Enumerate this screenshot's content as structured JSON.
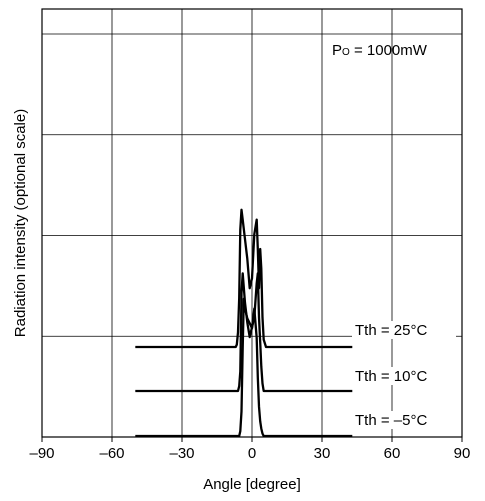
{
  "chart_data": {
    "type": "line",
    "xlabel": "Angle [degree]",
    "ylabel": "Radiation intensity (optional scale)",
    "xlim": [
      -90,
      90
    ],
    "x_ticks": [
      -90,
      -60,
      -30,
      0,
      30,
      60,
      90
    ],
    "x_tick_labels": [
      "–90",
      "–60",
      "–30",
      "0",
      "30",
      "60",
      "90"
    ],
    "grid": true,
    "condition_label": "Po = 1000mW",
    "condition_label_main": "P",
    "condition_label_sub": "O",
    "condition_label_rest": " = 1000mW",
    "series": [
      {
        "name": "Tth = 25°C",
        "x": [
          -50,
          -7,
          -6.5,
          -6,
          -5.5,
          -5,
          -4.5,
          -4,
          -3,
          -2,
          -1,
          0,
          1,
          2,
          2.5,
          3,
          3.5,
          4,
          4.5,
          5,
          6,
          43
        ],
        "y": [
          0,
          0,
          0.5,
          3,
          10,
          24,
          28,
          26,
          22,
          18,
          12,
          14,
          23,
          26,
          20,
          12,
          20,
          16,
          6,
          1.5,
          0,
          0
        ]
      },
      {
        "name": "Tth = 10°C",
        "x": [
          -50,
          -6,
          -5.5,
          -5,
          -4.5,
          -4,
          -3,
          -2,
          -1,
          0,
          1,
          2,
          2.5,
          3,
          3.5,
          4,
          4.5,
          5,
          43
        ],
        "y": [
          0,
          0,
          1,
          4,
          20,
          24,
          18,
          14,
          11,
          13,
          15,
          22,
          24,
          15,
          10,
          5,
          1.5,
          0,
          0
        ]
      },
      {
        "name": "Tth = –5°C",
        "x": [
          -50,
          -5.5,
          -5,
          -4.5,
          -4,
          -3.5,
          -3,
          -2,
          -1,
          0,
          1,
          2,
          2.5,
          3,
          3.5,
          4,
          4.5,
          5,
          43
        ],
        "y": [
          0,
          0,
          1,
          5,
          18,
          28,
          26,
          24,
          23,
          22,
          26,
          20,
          12,
          6,
          3,
          1.5,
          0.5,
          0,
          0
        ]
      }
    ]
  }
}
